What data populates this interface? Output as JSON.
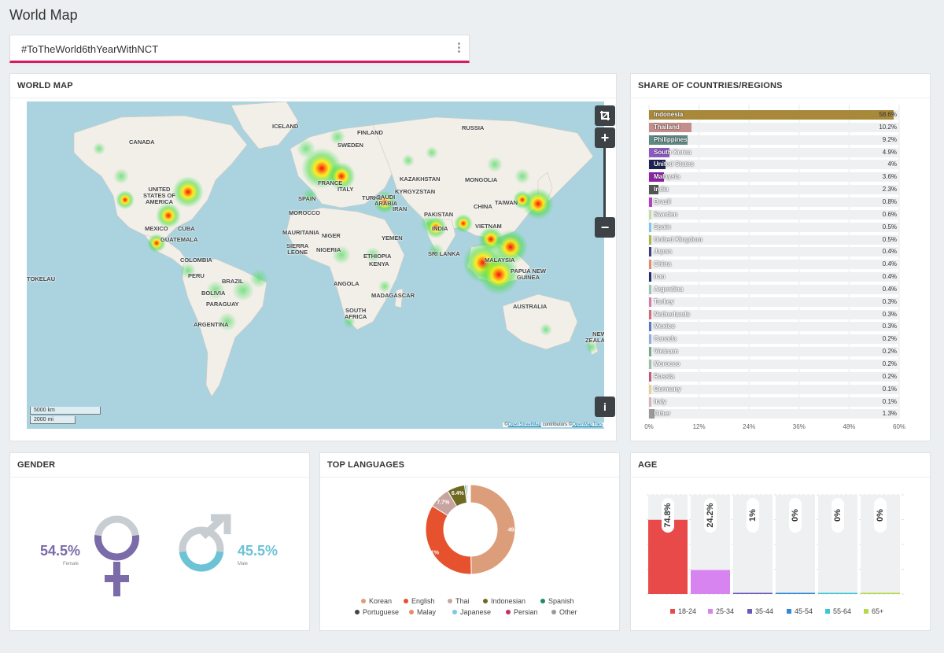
{
  "page": {
    "title": "World Map"
  },
  "hashtag": {
    "text": "#ToTheWorld6thYearWithNCT"
  },
  "world_map": {
    "title": "WORLD MAP",
    "scale_km": "5000 km",
    "scale_mi": "2000 mi",
    "attribution": {
      "prefix": "©",
      "osm": "OpenStreetMap",
      "mid": " contributors  ©",
      "omt": "OpenMapTiles"
    },
    "labels": [
      {
        "t": "ICELAND"
      },
      {
        "t": "FINLAND"
      },
      {
        "t": "SWEDEN"
      },
      {
        "t": "RUSSIA"
      },
      {
        "t": "CANADA"
      },
      {
        "t": "UNITED\nSTATES OF\nAMERICA"
      },
      {
        "t": "MEXICO"
      },
      {
        "t": "CUBA"
      },
      {
        "t": "GUATEMALA"
      },
      {
        "t": "COLOMBIA"
      },
      {
        "t": "PERU"
      },
      {
        "t": "BRAZIL"
      },
      {
        "t": "BOLIVIA"
      },
      {
        "t": "PARAGUAY"
      },
      {
        "t": "ARGENTINA"
      },
      {
        "t": "TOKELAU"
      },
      {
        "t": "FRANCE"
      },
      {
        "t": "ITALY"
      },
      {
        "t": "SPAIN"
      },
      {
        "t": "MOROCCO"
      },
      {
        "t": "MAURITANIA"
      },
      {
        "t": "NIGER"
      },
      {
        "t": "SIERRA\nLEONE"
      },
      {
        "t": "NIGERIA"
      },
      {
        "t": "ANGOLA"
      },
      {
        "t": "SOUTH\nAFRICA"
      },
      {
        "t": "MADAGASCAR"
      },
      {
        "t": "ETHIOPIA"
      },
      {
        "t": "KENYA"
      },
      {
        "t": "TURKEY"
      },
      {
        "t": "IRAN"
      },
      {
        "t": "SAUDI\nARABIA"
      },
      {
        "t": "YEMEN"
      },
      {
        "t": "KAZAKHSTAN"
      },
      {
        "t": "KYRGYZSTAN"
      },
      {
        "t": "PAKISTAN"
      },
      {
        "t": "INDIA"
      },
      {
        "t": "SRI LANKA"
      },
      {
        "t": "MONGOLIA"
      },
      {
        "t": "CHINA"
      },
      {
        "t": "TAIWAN"
      },
      {
        "t": "VIETNAM"
      },
      {
        "t": "MALAYSIA"
      },
      {
        "t": "PAPUA NEW\nGUINEA"
      },
      {
        "t": "AUSTRALIA"
      },
      {
        "t": "NEW\nZEALAND"
      }
    ]
  },
  "share": {
    "title": "SHARE OF COUNTRIES/REGIONS",
    "chart_data": {
      "type": "bar",
      "categories": [
        "Indonesia",
        "Thailand",
        "Philippines",
        "South Korea",
        "United States",
        "Malaysia",
        "India",
        "Brazil",
        "Sweden",
        "Spain",
        "United Kingdom",
        "Japan",
        "China",
        "Iran",
        "Argentina",
        "Turkey",
        "Netherlands",
        "Mexico",
        "Canada",
        "Vietnam",
        "Morocco",
        "Russia",
        "Germany",
        "Italy",
        "Other"
      ],
      "values": [
        58.6,
        10.2,
        9.2,
        4.9,
        4,
        3.6,
        2.3,
        0.8,
        0.6,
        0.5,
        0.5,
        0.4,
        0.4,
        0.4,
        0.4,
        0.3,
        0.3,
        0.3,
        0.2,
        0.2,
        0.2,
        0.2,
        0.1,
        0.1,
        1.3
      ],
      "value_labels": [
        "58.6%",
        "10.2%",
        "9.2%",
        "4.9%",
        "4%",
        "3.6%",
        "2.3%",
        "0.8%",
        "0.6%",
        "0.5%",
        "0.5%",
        "0.4%",
        "0.4%",
        "0.4%",
        "0.4%",
        "0.3%",
        "0.3%",
        "0.3%",
        "0.2%",
        "0.2%",
        "0.2%",
        "0.2%",
        "0.1%",
        "0.1%",
        "1.3%"
      ],
      "colors": [
        "#a8893a",
        "#c48e8a",
        "#5f8a84",
        "#8e58c6",
        "#1e2355",
        "#8e22a8",
        "#555555",
        "#b340c3",
        "#c9d9a8",
        "#7fc8e8",
        "#a9b84c",
        "#3a3e7a",
        "#e88a6a",
        "#2a2a6a",
        "#9cc4b4",
        "#d77aa8",
        "#d86a78",
        "#5a78c8",
        "#98a8e0",
        "#7aa88a",
        "#98c0a8",
        "#c05a78",
        "#e8d098",
        "#d8b0c0",
        "#999999"
      ],
      "xlim": [
        0,
        60
      ],
      "ticks": [
        "0%",
        "12%",
        "24%",
        "36%",
        "48%",
        "60%"
      ]
    }
  },
  "gender": {
    "title": "GENDER",
    "female_pct": "54.5%",
    "female_label": "Female",
    "male_pct": "45.5%",
    "male_label": "Male",
    "female_color": "#7b6ba8",
    "male_color": "#6cc3d5",
    "chart_data": {
      "type": "pie",
      "categories": [
        "Female",
        "Male"
      ],
      "values": [
        54.5,
        45.5
      ]
    }
  },
  "languages": {
    "title": "TOP LANGUAGES",
    "chart_data": {
      "type": "pie",
      "categories": [
        "Korean",
        "English",
        "Thai",
        "Indonesian",
        "Spanish",
        "Portuguese",
        "Malay",
        "Japanese",
        "Persian",
        "Other"
      ],
      "values": [
        49.7,
        34.1,
        7.7,
        6.4,
        0.5,
        0.4,
        0.4,
        0.3,
        0.2,
        0.3
      ],
      "labels": [
        "49.7%",
        "34.1%",
        "7.7%",
        "6.4%",
        "",
        "",
        "",
        "",
        "",
        ""
      ],
      "colors": [
        "#dc9e7a",
        "#e5522d",
        "#c8a4a0",
        "#6f6a22",
        "#1e8a6a",
        "#444444",
        "#e68a6a",
        "#7ec8e8",
        "#c0306a",
        "#999999"
      ]
    }
  },
  "age": {
    "title": "AGE",
    "chart_data": {
      "type": "bar",
      "categories": [
        "18-24",
        "25-34",
        "35-44",
        "45-54",
        "55-64",
        "65+"
      ],
      "values": [
        74.8,
        24.2,
        1,
        0,
        0,
        0
      ],
      "labels": [
        "74.8%",
        "24.2%",
        "1%",
        "0%",
        "0%",
        "0%"
      ],
      "colors": [
        "#e84a4a",
        "#d884f0",
        "#6a5ab8",
        "#2e8ad8",
        "#3ac8d8",
        "#b8d848"
      ],
      "ylim": [
        0,
        100
      ]
    }
  }
}
